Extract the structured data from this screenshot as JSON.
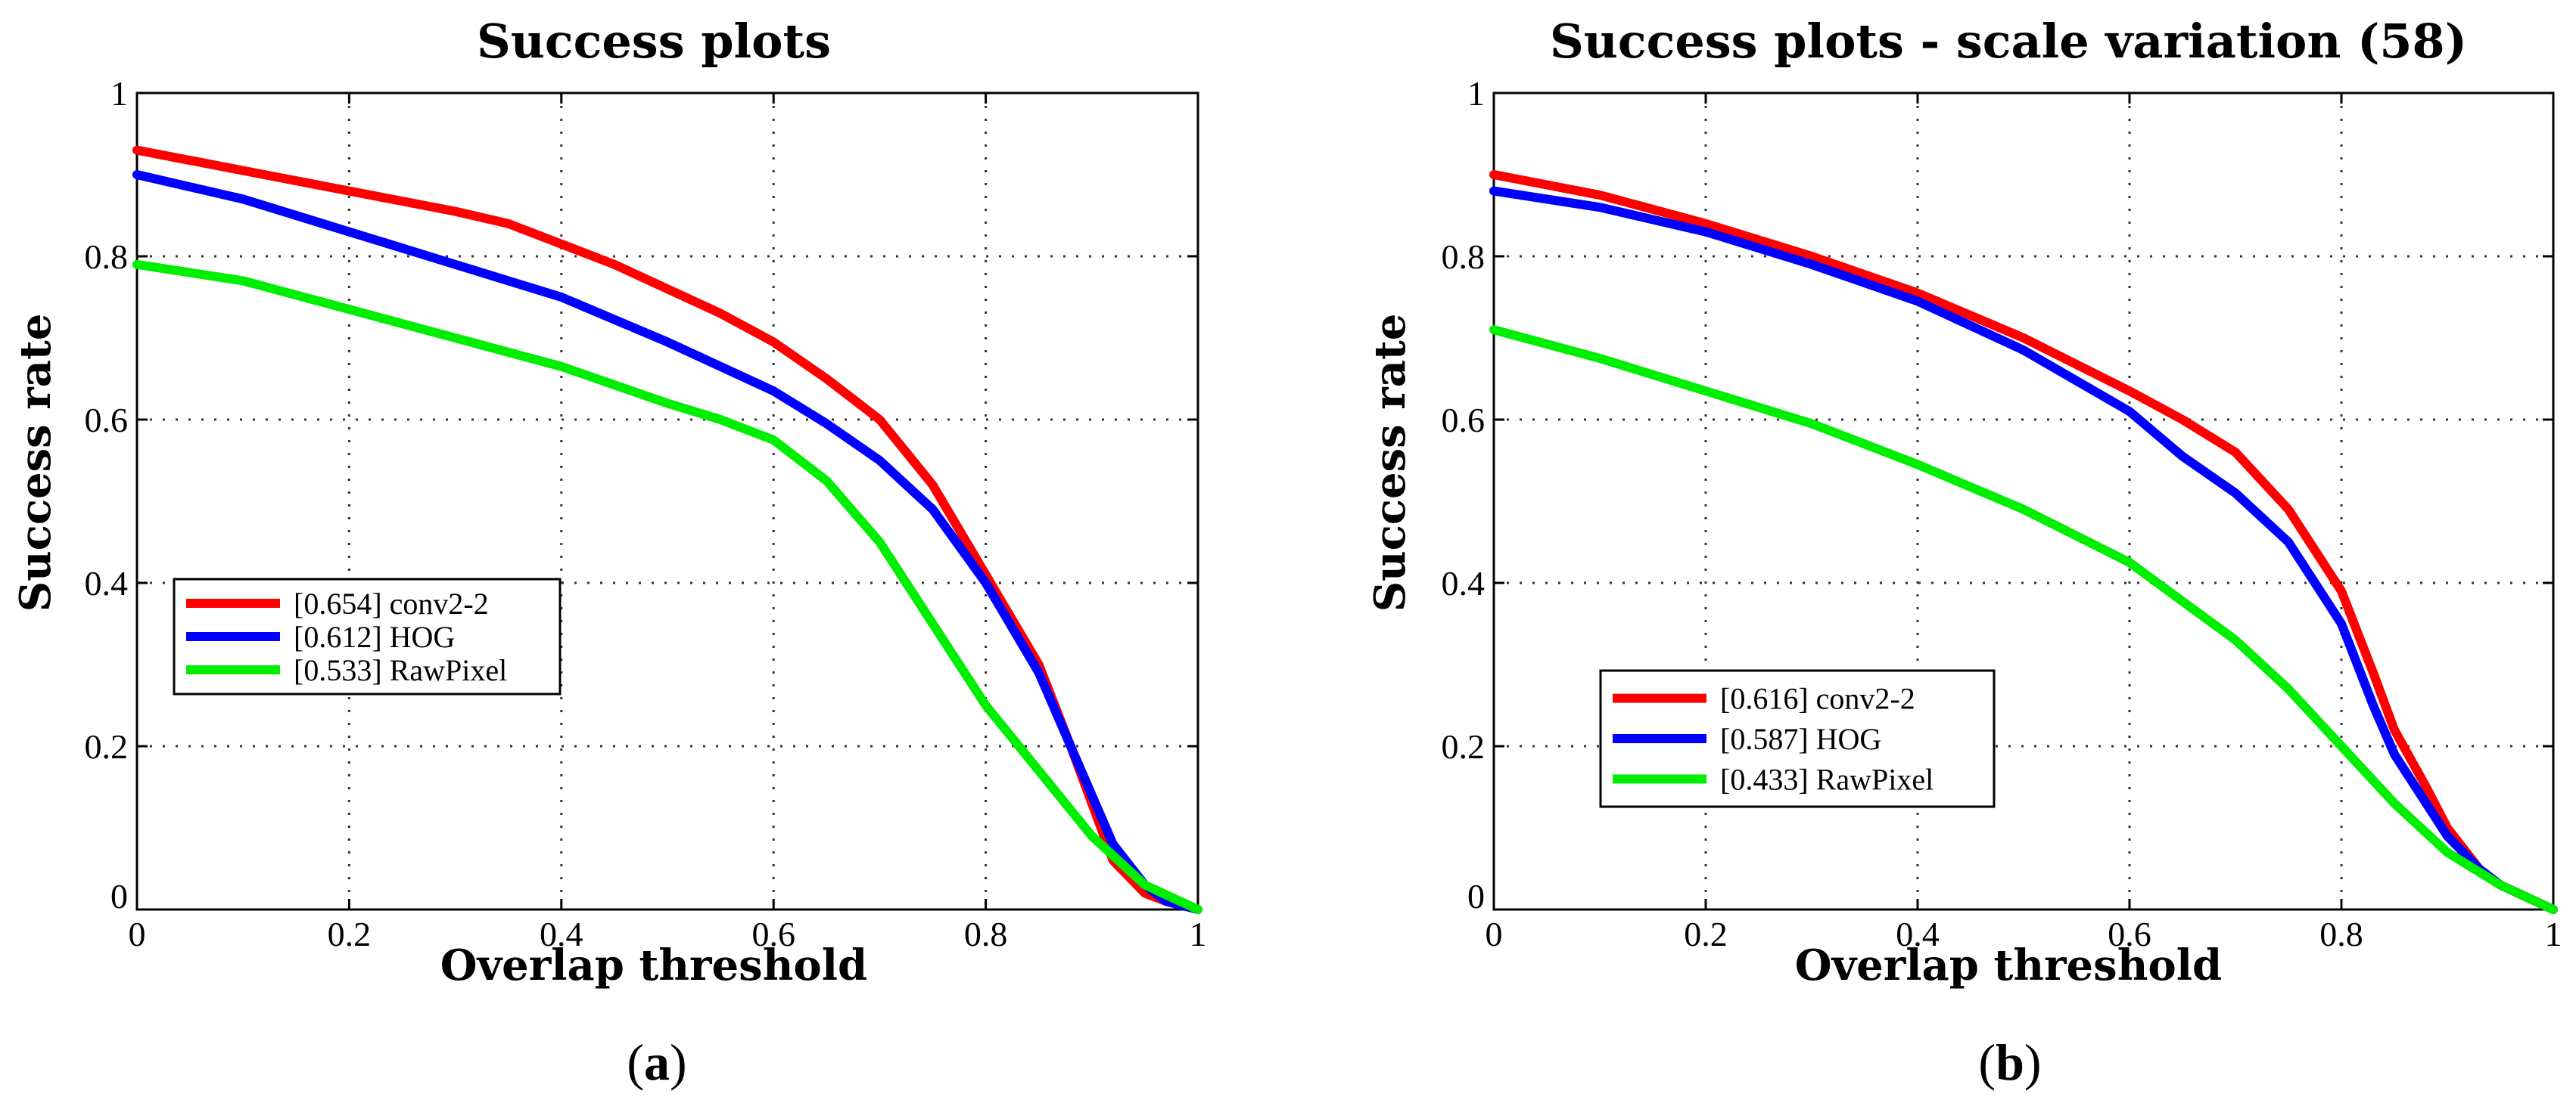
{
  "chart_data": [
    {
      "type": "line",
      "title": "Success plots",
      "xlabel": "Overlap threshold",
      "ylabel": "Success rate",
      "xlim": [
        0,
        1
      ],
      "ylim": [
        0,
        1
      ],
      "xticks": [
        "0",
        "0.2",
        "0.4",
        "0.6",
        "0.8",
        "1"
      ],
      "yticks": [
        "0",
        "0.2",
        "0.4",
        "0.6",
        "0.8",
        "1"
      ],
      "grid": true,
      "legend_position": "center-left",
      "panel_label": "a",
      "series": [
        {
          "name": "[0.654] conv2-2",
          "color": "#ff0000",
          "x": [
            0,
            0.1,
            0.2,
            0.3,
            0.35,
            0.4,
            0.45,
            0.5,
            0.55,
            0.6,
            0.65,
            0.7,
            0.75,
            0.8,
            0.85,
            0.88,
            0.9,
            0.92,
            0.95,
            0.97,
            1
          ],
          "y": [
            0.93,
            0.905,
            0.88,
            0.855,
            0.84,
            0.815,
            0.79,
            0.76,
            0.73,
            0.695,
            0.65,
            0.6,
            0.52,
            0.41,
            0.3,
            0.2,
            0.13,
            0.06,
            0.02,
            0.01,
            0
          ]
        },
        {
          "name": "[0.612] HOG",
          "color": "#0000ff",
          "x": [
            0,
            0.1,
            0.2,
            0.3,
            0.4,
            0.5,
            0.6,
            0.65,
            0.7,
            0.75,
            0.8,
            0.85,
            0.88,
            0.9,
            0.92,
            0.95,
            0.97,
            1
          ],
          "y": [
            0.9,
            0.87,
            0.83,
            0.79,
            0.75,
            0.695,
            0.635,
            0.595,
            0.55,
            0.49,
            0.4,
            0.29,
            0.2,
            0.14,
            0.08,
            0.03,
            0.01,
            0
          ]
        },
        {
          "name": "[0.533] RawPixel",
          "color": "#00ee00",
          "x": [
            0,
            0.1,
            0.2,
            0.3,
            0.4,
            0.5,
            0.55,
            0.6,
            0.65,
            0.7,
            0.75,
            0.8,
            0.85,
            0.9,
            0.95,
            1
          ],
          "y": [
            0.79,
            0.77,
            0.735,
            0.7,
            0.665,
            0.62,
            0.6,
            0.575,
            0.525,
            0.45,
            0.35,
            0.25,
            0.17,
            0.09,
            0.03,
            0
          ]
        }
      ]
    },
    {
      "type": "line",
      "title": "Success plots - scale variation (58)",
      "xlabel": "Overlap threshold",
      "ylabel": "Success rate",
      "xlim": [
        0,
        1
      ],
      "ylim": [
        0,
        1
      ],
      "xticks": [
        "0",
        "0.2",
        "0.4",
        "0.6",
        "0.8",
        "1"
      ],
      "yticks": [
        "0",
        "0.2",
        "0.4",
        "0.6",
        "0.8",
        "1"
      ],
      "grid": true,
      "legend_position": "lower-left",
      "panel_label": "b",
      "series": [
        {
          "name": "[0.616] conv2-2",
          "color": "#ff0000",
          "x": [
            0,
            0.1,
            0.2,
            0.3,
            0.4,
            0.5,
            0.6,
            0.65,
            0.7,
            0.75,
            0.8,
            0.83,
            0.85,
            0.88,
            0.9,
            0.93,
            0.95,
            1
          ],
          "y": [
            0.9,
            0.875,
            0.84,
            0.8,
            0.755,
            0.7,
            0.635,
            0.6,
            0.56,
            0.49,
            0.39,
            0.29,
            0.22,
            0.15,
            0.1,
            0.05,
            0.03,
            0
          ]
        },
        {
          "name": "[0.587] HOG",
          "color": "#0000ff",
          "x": [
            0,
            0.1,
            0.2,
            0.3,
            0.4,
            0.5,
            0.6,
            0.65,
            0.7,
            0.75,
            0.8,
            0.83,
            0.85,
            0.88,
            0.9,
            0.93,
            0.95,
            1
          ],
          "y": [
            0.88,
            0.86,
            0.83,
            0.79,
            0.745,
            0.685,
            0.61,
            0.555,
            0.51,
            0.45,
            0.35,
            0.25,
            0.19,
            0.13,
            0.09,
            0.05,
            0.03,
            0
          ]
        },
        {
          "name": "[0.433] RawPixel",
          "color": "#00ee00",
          "x": [
            0,
            0.1,
            0.2,
            0.3,
            0.4,
            0.5,
            0.6,
            0.7,
            0.75,
            0.8,
            0.85,
            0.9,
            0.95,
            1
          ],
          "y": [
            0.71,
            0.675,
            0.635,
            0.595,
            0.545,
            0.49,
            0.425,
            0.33,
            0.27,
            0.2,
            0.13,
            0.07,
            0.03,
            0
          ]
        }
      ]
    }
  ]
}
